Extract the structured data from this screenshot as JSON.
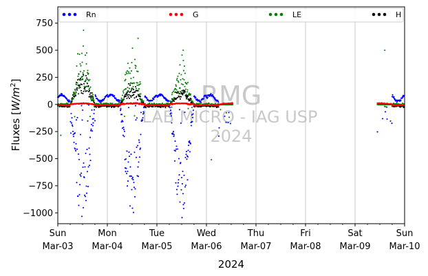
{
  "chart_data": {
    "type": "scatter",
    "title": "",
    "ylabel": "Fluxes [W/m²]",
    "ylabel_main": "Fluxes ",
    "ylabel_unit": "W/m",
    "ylabel_exp": "2",
    "xlabel": "2024",
    "ylim": [
      -1100,
      900
    ],
    "yticks": [
      750,
      500,
      250,
      0,
      -250,
      -500,
      -750,
      -1000
    ],
    "ytick_labels": [
      "750",
      "500",
      "250",
      "0",
      "−250",
      "−500",
      "−750",
      "−1000"
    ],
    "xlim": [
      "2024-03-03",
      "2024-03-10"
    ],
    "xticks": [
      {
        "day": "Sun",
        "date": "Mar-03"
      },
      {
        "day": "Mon",
        "date": "Mar-04"
      },
      {
        "day": "Tue",
        "date": "Mar-05"
      },
      {
        "day": "Wed",
        "date": "Mar-06"
      },
      {
        "day": "Thu",
        "date": "Mar-07"
      },
      {
        "day": "Fri",
        "date": "Mar-08"
      },
      {
        "day": "Sat",
        "date": "Mar-09"
      },
      {
        "day": "Sun",
        "date": "Mar-10"
      }
    ],
    "grid": "vertical",
    "legend_position": "top",
    "watermark": [
      "RMG",
      "LAB MICRO - IAG USP",
      "2024"
    ],
    "series": [
      {
        "name": "Rn",
        "color": "#0000ff"
      },
      {
        "name": "G",
        "color": "#ff0000"
      },
      {
        "name": "LE",
        "color": "#008000"
      },
      {
        "name": "H",
        "color": "#000000"
      }
    ]
  }
}
